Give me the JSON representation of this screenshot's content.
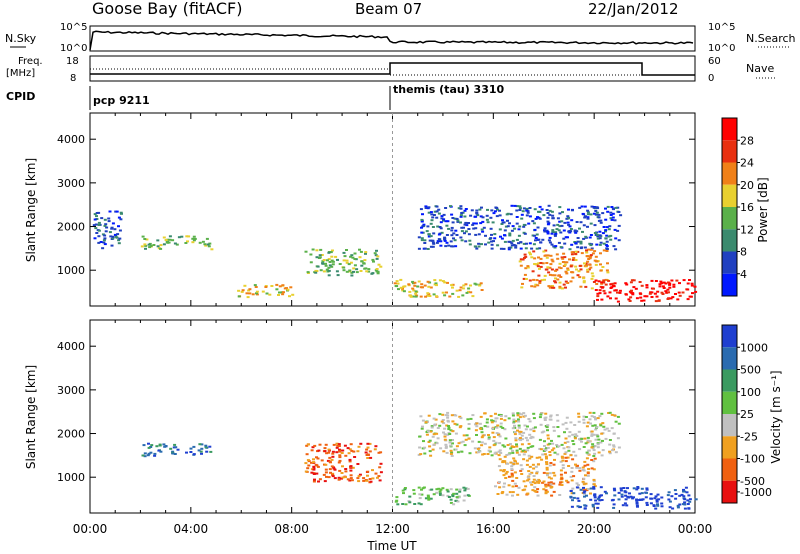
{
  "header": {
    "station": "Goose Bay (fitACF)",
    "beam": "Beam 07",
    "date": "22/Jan/2012"
  },
  "noise_panel": {
    "left_label": "N.Sky",
    "right_label": "N.Search",
    "left_ticks": [
      "10^5",
      "10^0"
    ],
    "right_ticks": [
      "10^5",
      "10^0"
    ]
  },
  "freq_panel": {
    "left_label_1": "Freq.",
    "left_label_2": "[MHz]",
    "right_label": "Nave",
    "left_ticks": [
      "18",
      "8"
    ],
    "right_ticks": [
      "60",
      "0"
    ]
  },
  "cpid": {
    "label": "CPID",
    "programs": [
      {
        "name": "pcp 9211",
        "start_hour": 0
      },
      {
        "name": "themis (tau) 3310",
        "start_hour": 12
      }
    ]
  },
  "chart_data": [
    {
      "type": "heatmap",
      "quantity": "power",
      "ylabel": "Slant Range [km]",
      "xlabel": "",
      "ylim": [
        180,
        4600
      ],
      "yticks": [
        "1000",
        "2000",
        "3000",
        "4000"
      ],
      "colorbar_label": "Power [dB]",
      "colorbar_ticks": [
        "4",
        "8",
        "12",
        "16",
        "20",
        "24",
        "28"
      ],
      "colors": [
        "#0018ff",
        "#2040c0",
        "#3a8a6e",
        "#5ab04a",
        "#e8d030",
        "#f08018",
        "#e83010",
        "#ff0000"
      ],
      "regions": [
        {
          "t_start": 0.1,
          "t_end": 1.2,
          "r_min": 1500,
          "r_max": 2400,
          "level": 1
        },
        {
          "t_start": 2.0,
          "t_end": 4.8,
          "r_min": 1500,
          "r_max": 1800,
          "level": 3
        },
        {
          "t_start": 5.8,
          "t_end": 8.0,
          "r_min": 400,
          "r_max": 700,
          "level": 4
        },
        {
          "t_start": 8.5,
          "t_end": 11.5,
          "r_min": 900,
          "r_max": 1500,
          "level": 3
        },
        {
          "t_start": 12.0,
          "t_end": 15.5,
          "r_min": 400,
          "r_max": 800,
          "level": 4
        },
        {
          "t_start": 13.0,
          "t_end": 21.0,
          "r_min": 1500,
          "r_max": 2500,
          "level": 1
        },
        {
          "t_start": 17.0,
          "t_end": 20.5,
          "r_min": 600,
          "r_max": 1500,
          "level": 5
        },
        {
          "t_start": 20.0,
          "t_end": 24.0,
          "r_min": 300,
          "r_max": 800,
          "level": 7
        }
      ]
    },
    {
      "type": "heatmap",
      "quantity": "velocity",
      "ylabel": "Slant Range [km]",
      "xlabel": "Time UT",
      "xticks": [
        "00:00",
        "04:00",
        "08:00",
        "12:00",
        "16:00",
        "20:00",
        "00:00"
      ],
      "ylim": [
        180,
        4600
      ],
      "yticks": [
        "1000",
        "2000",
        "3000",
        "4000"
      ],
      "colorbar_label": "Velocity [m s⁻¹]",
      "colorbar_ticks": [
        "1000",
        "500",
        "100",
        "25",
        "-25",
        "-100",
        "-500",
        "-1000"
      ],
      "colors": [
        "#1f3fd0",
        "#2a6bb0",
        "#3a9a60",
        "#60c040",
        "#c0c0c0",
        "#f0a020",
        "#f06010",
        "#e81010"
      ],
      "regions": [
        {
          "t_start": 2.0,
          "t_end": 4.8,
          "r_min": 1500,
          "r_max": 1800,
          "level": 1
        },
        {
          "t_start": 8.5,
          "t_end": 11.5,
          "r_min": 900,
          "r_max": 1800,
          "level": 6
        },
        {
          "t_start": 12.0,
          "t_end": 15.0,
          "r_min": 400,
          "r_max": 800,
          "level": 3
        },
        {
          "t_start": 13.0,
          "t_end": 21.0,
          "r_min": 1500,
          "r_max": 2500,
          "level": 4
        },
        {
          "t_start": 16.0,
          "t_end": 20.0,
          "r_min": 600,
          "r_max": 1500,
          "level": 5
        },
        {
          "t_start": 19.0,
          "t_end": 24.0,
          "r_min": 300,
          "r_max": 800,
          "level": 0
        }
      ]
    }
  ]
}
